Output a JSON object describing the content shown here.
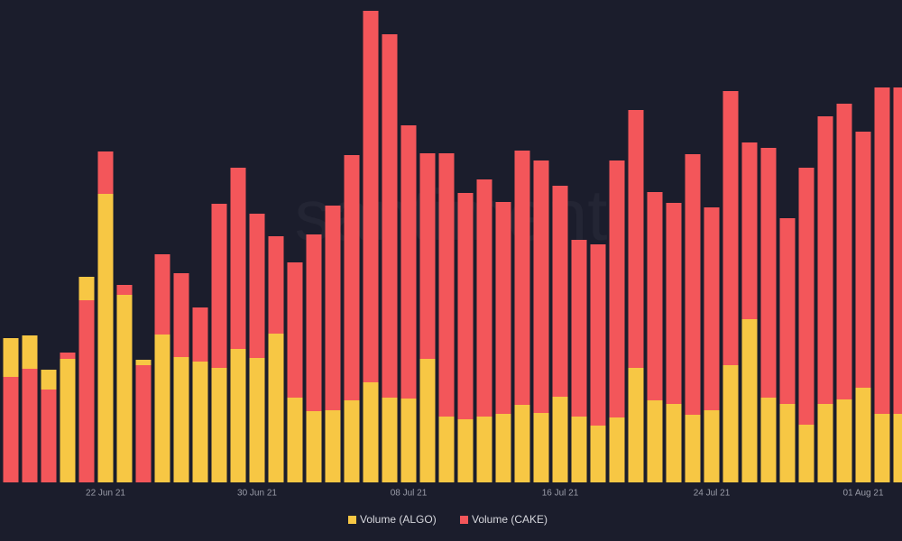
{
  "chart_data": {
    "type": "bar",
    "watermark": "santiment",
    "categories": [
      null,
      null,
      null,
      null,
      null,
      "22 Jun 21",
      null,
      null,
      null,
      null,
      null,
      null,
      null,
      "30 Jun 21",
      null,
      null,
      null,
      null,
      null,
      null,
      null,
      "08 Jul 21",
      null,
      null,
      null,
      null,
      null,
      null,
      null,
      "16 Jul 21",
      null,
      null,
      null,
      null,
      null,
      null,
      null,
      "24 Jul 21",
      null,
      null,
      null,
      null,
      null,
      null,
      null,
      "01 Aug 21",
      null,
      null
    ],
    "series": [
      {
        "name": "Volume (ALGO)",
        "color": "#f7c744",
        "values": [
          160,
          163,
          125,
          137,
          228,
          320,
          208,
          136,
          164,
          139,
          134,
          127,
          148,
          138,
          165,
          94,
          79,
          80,
          91,
          111,
          94,
          93,
          137,
          73,
          70,
          73,
          76,
          86,
          77,
          95,
          73,
          63,
          72,
          127,
          91,
          87,
          75,
          80,
          130,
          181,
          94,
          87,
          64,
          87,
          92,
          105,
          76,
          76
        ]
      },
      {
        "name": "Volume (CAKE)",
        "color": "#f3565a",
        "values": [
          117,
          126,
          103,
          144,
          202,
          367,
          219,
          130,
          253,
          232,
          194,
          309,
          349,
          298,
          273,
          244,
          275,
          307,
          363,
          523,
          497,
          396,
          365,
          365,
          321,
          336,
          311,
          368,
          357,
          329,
          269,
          264,
          357,
          413,
          322,
          310,
          364,
          305,
          434,
          377,
          371,
          293,
          349,
          406,
          420,
          389,
          438,
          438
        ]
      }
    ],
    "ylim": [
      0,
      535
    ]
  }
}
